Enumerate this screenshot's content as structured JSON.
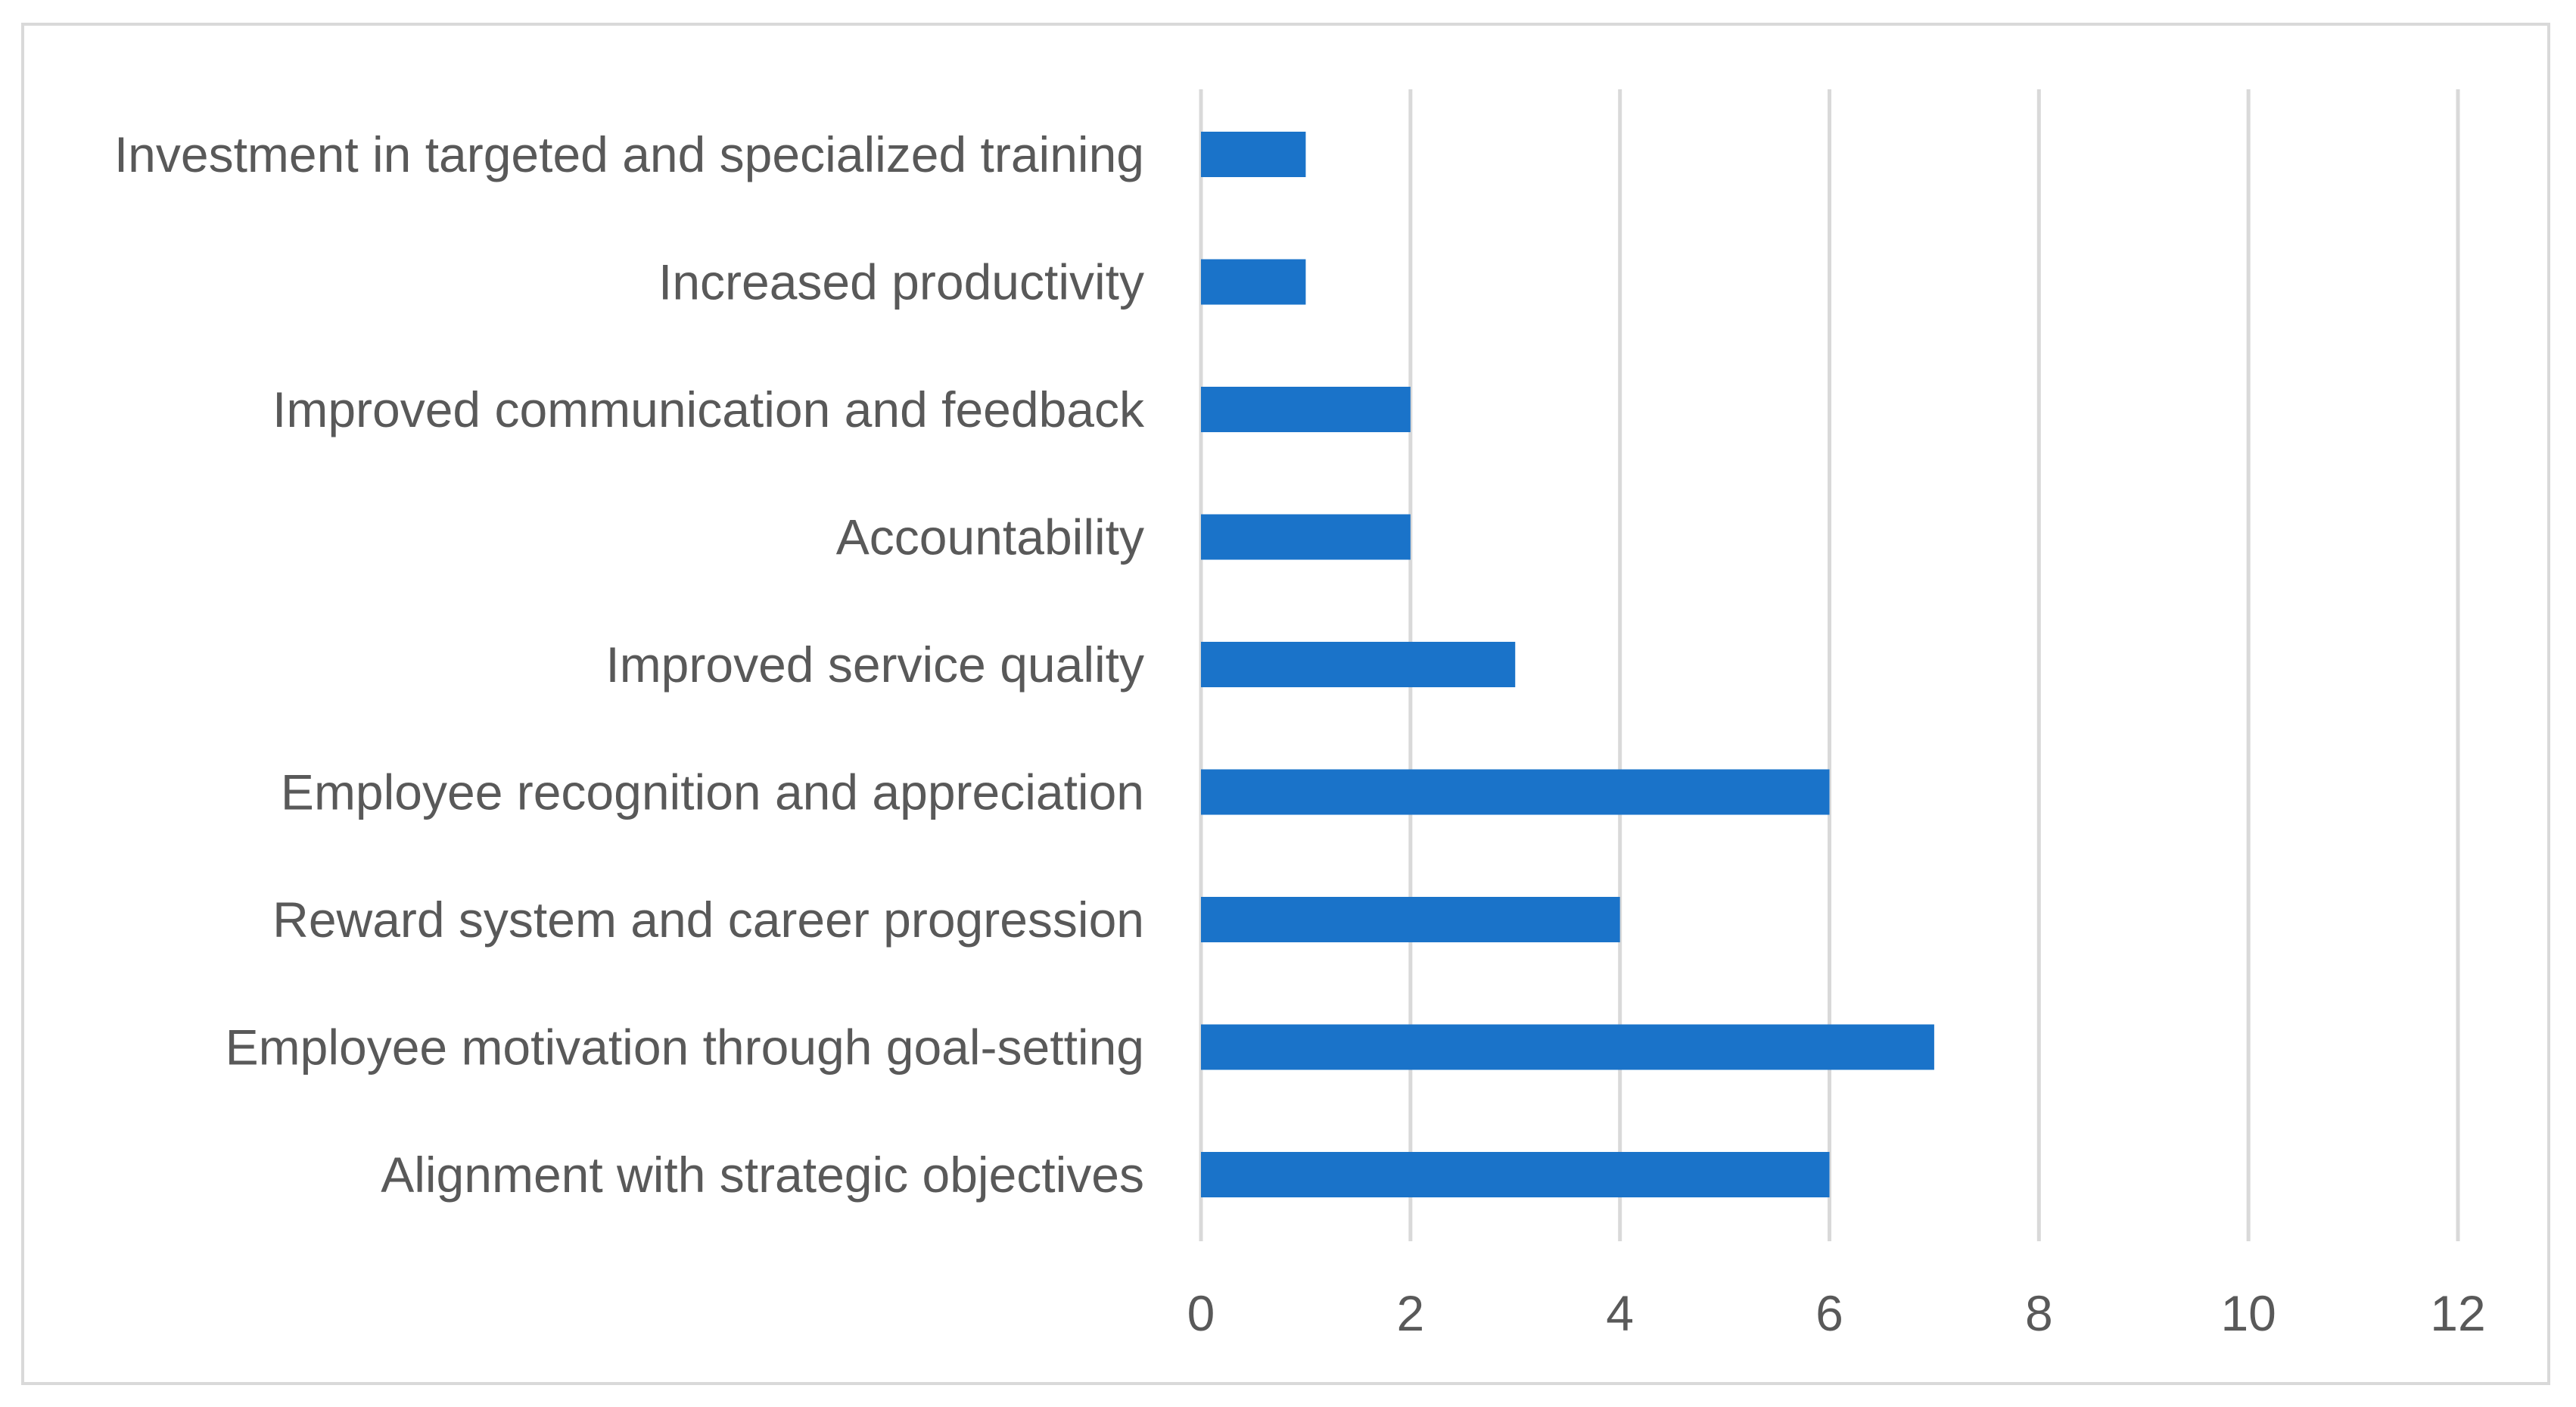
{
  "chart_data": {
    "type": "bar",
    "orientation": "horizontal",
    "title": "",
    "xlabel": "",
    "ylabel": "",
    "categories": [
      "Investment in targeted and specialized training",
      "Increased productivity",
      "Improved communication and feedback",
      "Accountability",
      "Improved service quality",
      "Employee recognition and appreciation",
      "Reward system and career progression",
      "Employee motivation through goal-setting",
      "Alignment with strategic objectives"
    ],
    "values": [
      1,
      1,
      2,
      2,
      3,
      6,
      4,
      7,
      6
    ],
    "xlim": [
      0,
      12
    ],
    "xticks": [
      "0",
      "2",
      "4",
      "6",
      "8",
      "10",
      "12"
    ],
    "grid": "vertical",
    "legend": "none",
    "bar_color": "#1a73c9"
  }
}
